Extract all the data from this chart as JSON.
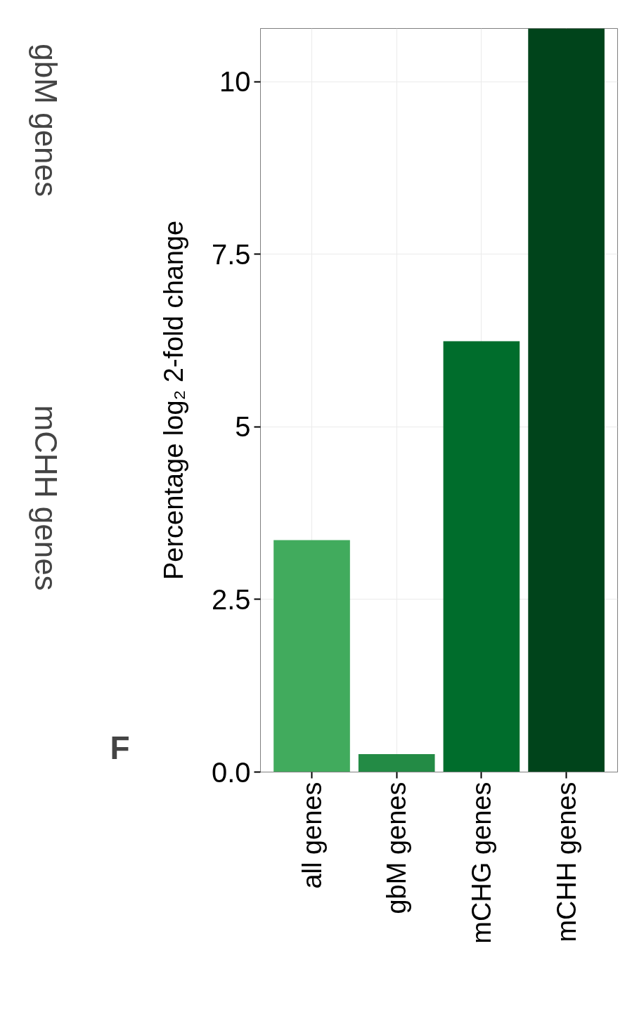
{
  "chart_data": {
    "type": "bar",
    "ylabel": "Percentage log₂ 2-fold change",
    "categories": [
      "all genes",
      "gbM genes",
      "mCHG genes",
      "mCHH genes"
    ],
    "values": [
      3.36,
      0.26,
      6.24,
      10.77
    ],
    "colors": [
      "#41ab5d",
      "#238b45",
      "#006d2c",
      "#00441b"
    ],
    "ylim": [
      0,
      10.77
    ],
    "yticks": [
      {
        "value": 0,
        "label": "0.0"
      },
      2.5,
      5,
      7.5,
      10
    ],
    "grid": true,
    "annotations": [
      "gbM genes",
      "mCHH genes",
      "F"
    ]
  }
}
